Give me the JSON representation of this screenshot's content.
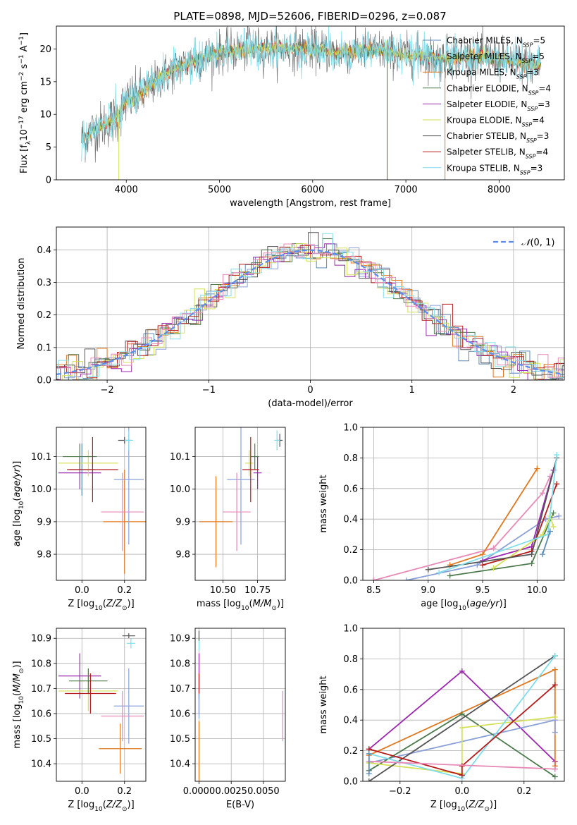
{
  "figure": {
    "title": "PLATE=0898, MJD=52606, FIBERID=0296, z=0.087"
  },
  "colors": {
    "Chabrier MILES": "#5a8ab8",
    "Salpeter MILES": "#8aa0d8",
    "Kroupa MILES": "#e07820",
    "Chabrier ELODIE": "#4d7a4d",
    "Salpeter ELODIE": "#9c27b0",
    "Kroupa ELODIE": "#d4e157",
    "Chabrier STELIB": "#555555",
    "Salpeter STELIB": "#b71c1c",
    "Kroupa STELIB": "#80deea",
    "pink": "#e88ab8",
    "normal": "#5b8def"
  },
  "chart_data": [
    {
      "id": "spectrum",
      "type": "line",
      "title": "PLATE=0898, MJD=52606, FIBERID=0296, z=0.087",
      "xlabel": "wavelength [Angstrom, rest frame]",
      "ylabel": "Flux [f_λ 10^-17 erg cm^-2 s^-1 A^-1]",
      "xlim": [
        3250,
        8700
      ],
      "ylim": [
        0,
        23.5
      ],
      "xticks": [
        4000,
        5000,
        6000,
        7000,
        8000
      ],
      "yticks": [
        0,
        5,
        10,
        15,
        20
      ],
      "legend_position": "right",
      "legend": [
        "Chabrier MILES, N_SSP=5",
        "Salpeter MILES, N_SSP=5",
        "Kroupa MILES, N_SSP=3",
        "Chabrier ELODIE, N_SSP=4",
        "Salpeter ELODIE, N_SSP=3",
        "Kroupa ELODIE, N_SSP=4",
        "Chabrier STELIB, N_SSP=3",
        "Salpeter STELIB, N_SSP=4",
        "Kroupa STELIB, N_SSP=3"
      ],
      "continuum_x": [
        3500,
        3700,
        3900,
        4000,
        4200,
        4400,
        4600,
        4800,
        5000,
        5200,
        5400,
        5600,
        5800,
        6000,
        6200,
        6400,
        6600,
        6800,
        7000,
        7200,
        7400,
        7600,
        7800,
        8000,
        8200,
        8400
      ],
      "continuum_y": [
        6,
        8,
        9.5,
        12,
        13.5,
        16,
        17.5,
        18.5,
        19.5,
        19.8,
        20,
        20.2,
        20,
        20,
        19.5,
        19.5,
        20,
        19.5,
        19,
        19,
        18.5,
        18.8,
        18.8,
        18.5,
        18,
        17.5
      ]
    },
    {
      "id": "residuals",
      "type": "line",
      "xlabel": "(data-model)/error",
      "ylabel": "Normed distribution",
      "xlim": [
        -2.5,
        2.5
      ],
      "ylim": [
        0,
        0.47
      ],
      "xticks": [
        -2,
        -1,
        0,
        1,
        2
      ],
      "yticks": [
        0.0,
        0.1,
        0.2,
        0.3,
        0.4
      ],
      "grid": true,
      "legend": [
        "N(0,1)"
      ],
      "legend_position": "top-right",
      "hist_bin_width": 0.1
    },
    {
      "id": "age-vs-Z",
      "type": "scatter",
      "xlabel": "Z [log10(Z/Z⊙)]",
      "ylabel": "age [log10(age/yr)]",
      "xlim": [
        -0.12,
        0.3
      ],
      "ylim": [
        9.72,
        10.19
      ],
      "xticks": [
        0.0,
        0.2
      ],
      "yticks": [
        9.8,
        9.9,
        10.0,
        10.1
      ],
      "grid": true,
      "points": [
        {
          "s": "Chabrier MILES",
          "x": 0.0,
          "y": 10.06,
          "xerr": 0.06,
          "yerr": 0.08
        },
        {
          "s": "Kroupa MILES",
          "x": 0.2,
          "y": 9.9,
          "xerr": 0.1,
          "yerr": 0.16
        },
        {
          "s": "Salpeter MILES",
          "x": 0.22,
          "y": 10.03,
          "xerr": 0.07,
          "yerr": 0.2
        },
        {
          "s": "pink",
          "x": 0.19,
          "y": 9.93,
          "xerr": 0.1,
          "yerr": 0.12
        },
        {
          "s": "Salpeter ELODIE",
          "x": -0.01,
          "y": 10.05,
          "xerr": 0.1,
          "yerr": 0.05
        },
        {
          "s": "Kroupa ELODIE",
          "x": 0.03,
          "y": 10.08,
          "xerr": 0.14,
          "yerr": 0.04
        },
        {
          "s": "Chabrier ELODIE",
          "x": -0.01,
          "y": 10.1,
          "xerr": 0.08,
          "yerr": 0.04
        },
        {
          "s": "Salpeter STELIB",
          "x": 0.05,
          "y": 10.06,
          "xerr": 0.12,
          "yerr": 0.1
        },
        {
          "s": "Chabrier STELIB",
          "x": 0.2,
          "y": 10.15,
          "xerr": 0.03,
          "yerr": 0.01
        },
        {
          "s": "Kroupa STELIB",
          "x": 0.22,
          "y": 10.15,
          "xerr": 0.02,
          "yerr": 0.03
        }
      ]
    },
    {
      "id": "age-vs-mass",
      "type": "scatter",
      "xlabel": "mass [log10(M/M⊙)]",
      "ylabel": "",
      "xlim": [
        10.3,
        10.95
      ],
      "ylim": [
        9.72,
        10.19
      ],
      "xticks": [
        10.5,
        10.75
      ],
      "yticks": [
        9.8,
        9.9,
        10.0,
        10.1
      ],
      "grid": true,
      "points": [
        {
          "s": "Kroupa MILES",
          "x": 10.45,
          "y": 9.9,
          "xerr": 0.12,
          "yerr": 0.14
        },
        {
          "s": "Salpeter MILES",
          "x": 10.63,
          "y": 10.03,
          "xerr": 0.1,
          "yerr": 0.2
        },
        {
          "s": "pink",
          "x": 10.6,
          "y": 9.93,
          "xerr": 0.1,
          "yerr": 0.12
        },
        {
          "s": "Chabrier ELODIE",
          "x": 10.73,
          "y": 10.1,
          "xerr": 0.03,
          "yerr": 0.04
        },
        {
          "s": "Salpeter ELODIE",
          "x": 10.75,
          "y": 10.05,
          "xerr": 0.03,
          "yerr": 0.05
        },
        {
          "s": "Kroupa ELODIE",
          "x": 10.69,
          "y": 10.08,
          "xerr": 0.03,
          "yerr": 0.04
        },
        {
          "s": "Salpeter STELIB",
          "x": 10.7,
          "y": 10.06,
          "xerr": 0.06,
          "yerr": 0.1
        },
        {
          "s": "Chabrier STELIB",
          "x": 10.91,
          "y": 10.15,
          "xerr": 0.02,
          "yerr": 0.02
        },
        {
          "s": "Kroupa STELIB",
          "x": 10.89,
          "y": 10.15,
          "xerr": 0.02,
          "yerr": 0.03
        }
      ]
    },
    {
      "id": "weight-vs-age",
      "type": "line",
      "xlabel": "age [log10(age/yr)]",
      "ylabel": "mass weight",
      "xlim": [
        8.4,
        10.25
      ],
      "ylim": [
        0,
        1.0
      ],
      "xticks": [
        8.5,
        9.0,
        9.5,
        10.0
      ],
      "yticks": [
        0.0,
        0.2,
        0.4,
        0.6,
        0.8,
        1.0
      ],
      "grid": true,
      "series": [
        {
          "s": "pink",
          "x": [
            8.5,
            9.6,
            10.05,
            10.12
          ],
          "y": [
            0.0,
            0.21,
            0.57,
            0.68
          ]
        },
        {
          "s": "Salpeter MILES",
          "x": [
            8.8,
            9.45,
            10.08,
            10.2
          ],
          "y": [
            0.0,
            0.1,
            0.4,
            0.42
          ]
        },
        {
          "s": "Kroupa MILES",
          "x": [
            9.2,
            9.5,
            10.0
          ],
          "y": [
            0.1,
            0.17,
            0.73
          ]
        },
        {
          "s": "Salpeter ELODIE",
          "x": [
            9.5,
            9.95,
            10.15
          ],
          "y": [
            0.13,
            0.22,
            0.72
          ]
        },
        {
          "s": "Salpeter STELIB",
          "x": [
            9.5,
            9.95,
            10.18
          ],
          "y": [
            0.1,
            0.19,
            0.63
          ]
        },
        {
          "s": "Chabrier ELODIE",
          "x": [
            9.2,
            9.95,
            10.15
          ],
          "y": [
            0.03,
            0.11,
            0.44
          ]
        },
        {
          "s": "Kroupa ELODIE",
          "x": [
            9.6,
            10.05,
            10.12,
            10.15
          ],
          "y": [
            0.08,
            0.3,
            0.42,
            0.35
          ]
        },
        {
          "s": "Chabrier STELIB",
          "x": [
            9.0,
            9.95,
            10.18
          ],
          "y": [
            0.07,
            0.17,
            0.8
          ]
        },
        {
          "s": "Kroupa STELIB",
          "x": [
            9.1,
            10.1,
            10.18
          ],
          "y": [
            0.05,
            0.3,
            0.82
          ]
        },
        {
          "s": "Chabrier MILES",
          "x": [
            10.05,
            10.12
          ],
          "y": [
            0.17,
            0.32
          ]
        }
      ]
    },
    {
      "id": "mass-vs-Z",
      "type": "scatter",
      "xlabel": "Z [log10(Z/Z⊙)]",
      "ylabel": "mass [log10(M/M⊙)]",
      "xlim": [
        -0.12,
        0.3
      ],
      "ylim": [
        10.33,
        10.94
      ],
      "xticks": [
        0.0,
        0.2
      ],
      "yticks": [
        10.4,
        10.5,
        10.6,
        10.7,
        10.8,
        10.9
      ],
      "grid": true,
      "points": [
        {
          "s": "Kroupa MILES",
          "x": 0.18,
          "y": 10.46,
          "xerr": 0.1,
          "yerr": 0.1
        },
        {
          "s": "Salpeter MILES",
          "x": 0.22,
          "y": 10.63,
          "xerr": 0.07,
          "yerr": 0.15
        },
        {
          "s": "pink",
          "x": 0.19,
          "y": 10.59,
          "xerr": 0.1,
          "yerr": 0.1
        },
        {
          "s": "Salpeter ELODIE",
          "x": -0.01,
          "y": 10.75,
          "xerr": 0.1,
          "yerr": 0.09
        },
        {
          "s": "Kroupa ELODIE",
          "x": 0.03,
          "y": 10.69,
          "xerr": 0.14,
          "yerr": 0.08
        },
        {
          "s": "Chabrier ELODIE",
          "x": 0.03,
          "y": 10.73,
          "xerr": 0.09,
          "yerr": 0.05
        },
        {
          "s": "Salpeter STELIB",
          "x": 0.04,
          "y": 10.68,
          "xerr": 0.12,
          "yerr": 0.08
        },
        {
          "s": "Chabrier STELIB",
          "x": 0.22,
          "y": 10.91,
          "xerr": 0.03,
          "yerr": 0.01
        },
        {
          "s": "Kroupa STELIB",
          "x": 0.23,
          "y": 10.88,
          "xerr": 0.02,
          "yerr": 0.02
        }
      ]
    },
    {
      "id": "mass-vs-EBV",
      "type": "scatter",
      "xlabel": "E(B-V)",
      "ylabel": "",
      "xlim": [
        -0.0003,
        0.0067
      ],
      "ylim": [
        10.33,
        10.94
      ],
      "xticks": [
        0.0,
        0.0025,
        0.005
      ],
      "yticks": [
        10.4,
        10.5,
        10.6,
        10.7,
        10.8,
        10.9
      ],
      "grid": true,
      "points": [
        {
          "s": "Kroupa MILES",
          "x": 0.0,
          "y": 10.45,
          "xerr": 0.0,
          "yerr": 0.12
        },
        {
          "s": "Salpeter ELODIE",
          "x": 0.0,
          "y": 10.75,
          "xerr": 0.0,
          "yerr": 0.09
        },
        {
          "s": "Salpeter STELIB",
          "x": 0.0,
          "y": 10.68,
          "xerr": 0.0,
          "yerr": 0.08
        },
        {
          "s": "Salpeter MILES",
          "x": 0.0,
          "y": 10.63,
          "xerr": 0.0,
          "yerr": 0.05
        },
        {
          "s": "Kroupa STELIB",
          "x": 0.0,
          "y": 10.88,
          "xerr": 0.0,
          "yerr": 0.03
        },
        {
          "s": "Chabrier STELIB",
          "x": 0.0,
          "y": 10.91,
          "xerr": 0.0,
          "yerr": 0.02
        },
        {
          "s": "pink",
          "x": 0.0065,
          "y": 10.59,
          "xerr": 0.0,
          "yerr": 0.1
        }
      ]
    },
    {
      "id": "weight-vs-Z",
      "type": "line",
      "xlabel": "Z [log10(Z/Z⊙)]",
      "ylabel": "mass weight",
      "xlim": [
        -0.32,
        0.33
      ],
      "ylim": [
        0,
        1.0
      ],
      "xticks": [
        -0.2,
        0.0,
        0.2
      ],
      "yticks": [
        0.0,
        0.2,
        0.4,
        0.6,
        0.8,
        1.0
      ],
      "grid": true,
      "series": [
        {
          "s": "Salpeter ELODIE",
          "x": [
            -0.3,
            0.0,
            0.3,
            0.3
          ],
          "y": [
            0.21,
            0.72,
            0.13,
            0.08
          ]
        },
        {
          "s": "Kroupa MILES",
          "x": [
            -0.3,
            0.3,
            0.3
          ],
          "y": [
            0.17,
            0.73,
            0.1
          ]
        },
        {
          "s": "Salpeter MILES",
          "x": [
            -0.3,
            0.3,
            0.3
          ],
          "y": [
            0.12,
            0.4,
            0.32
          ]
        },
        {
          "s": "Chabrier ELODIE",
          "x": [
            -0.3,
            0.0,
            0.3
          ],
          "y": [
            0.07,
            0.44,
            0.03
          ]
        },
        {
          "s": "Kroupa ELODIE",
          "x": [
            -0.3,
            0.0,
            0.0,
            0.3
          ],
          "y": [
            0.12,
            0.05,
            0.35,
            0.42
          ]
        },
        {
          "s": "Chabrier STELIB",
          "x": [
            -0.3,
            0.3
          ],
          "y": [
            0.0,
            0.82
          ]
        },
        {
          "s": "Kroupa STELIB",
          "x": [
            -0.3,
            0.0,
            0.3
          ],
          "y": [
            0.18,
            0.02,
            0.82
          ]
        },
        {
          "s": "Salpeter STELIB",
          "x": [
            -0.3,
            0.0,
            0.0,
            0.3
          ],
          "y": [
            0.21,
            0.04,
            0.1,
            0.63
          ]
        },
        {
          "s": "pink",
          "x": [
            -0.3,
            0.3
          ],
          "y": [
            0.13,
            0.08
          ]
        },
        {
          "s": "Chabrier MILES",
          "x": [
            -0.3,
            -0.3
          ],
          "y": [
            0.05,
            0.18
          ]
        }
      ]
    }
  ]
}
